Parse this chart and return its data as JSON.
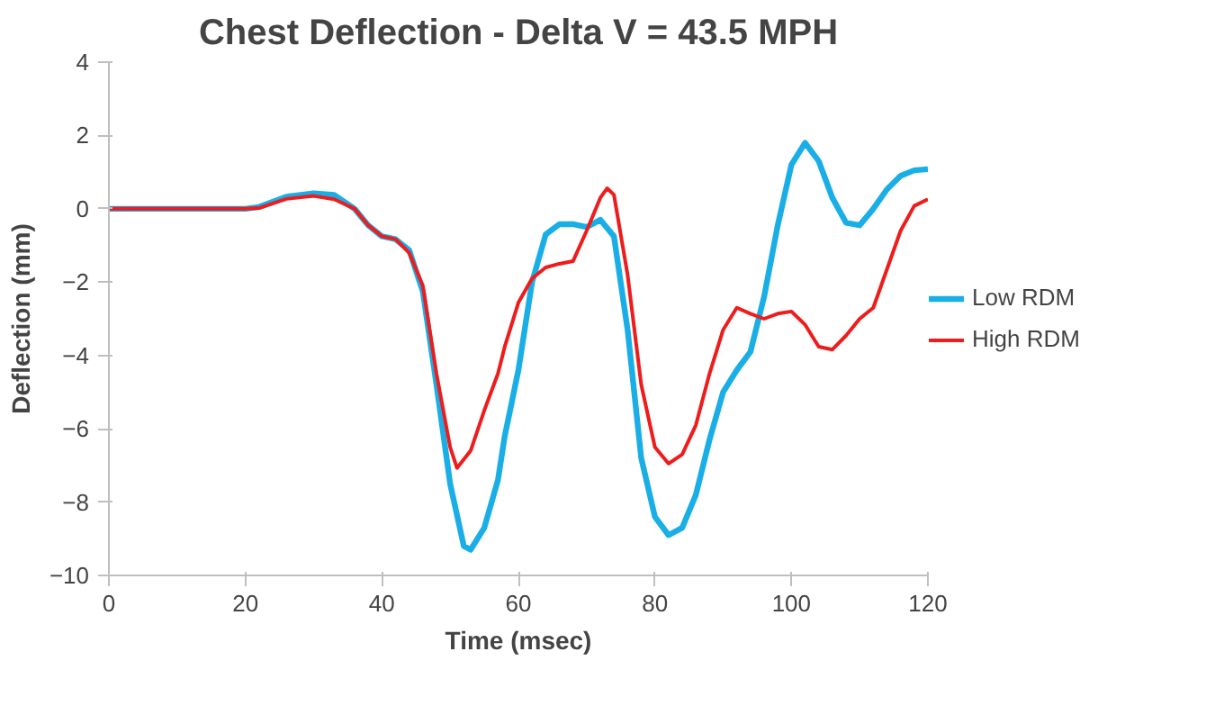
{
  "chart_data": {
    "type": "line",
    "title": "Chest Deflection - Delta V = 43.5 MPH",
    "xlabel": "Time (msec)",
    "ylabel": "Deflection (mm)",
    "xlim": [
      0,
      120
    ],
    "xticks": [
      0,
      20,
      40,
      60,
      80,
      100,
      120
    ],
    "ylim": [
      -10,
      4
    ],
    "yticks": [
      -10,
      -8,
      -6,
      -4,
      -2,
      0,
      2,
      4
    ],
    "grid": false,
    "legend": "right",
    "marker": "none",
    "line_style": "solid",
    "series": [
      {
        "name": "Low RDM",
        "color": "#1aaee6",
        "x": [
          0,
          10,
          20,
          22,
          26,
          30,
          33,
          36,
          38,
          40,
          42,
          44,
          46,
          48,
          50,
          52,
          53,
          55,
          57,
          58,
          60,
          62,
          64,
          66,
          68,
          70,
          72,
          74,
          76,
          78,
          80,
          82,
          84,
          86,
          88,
          90,
          92,
          94,
          96,
          98,
          100,
          102,
          104,
          106,
          108,
          110,
          112,
          114,
          116,
          118,
          120
        ],
        "values": [
          0,
          0,
          0,
          0.05,
          0.33,
          0.42,
          0.38,
          0,
          -0.45,
          -0.75,
          -0.83,
          -1.13,
          -2.26,
          -4.8,
          -7.5,
          -9.2,
          -9.3,
          -8.7,
          -7.4,
          -6.2,
          -4.4,
          -2.0,
          -0.7,
          -0.42,
          -0.42,
          -0.5,
          -0.3,
          -0.75,
          -3.3,
          -6.8,
          -8.4,
          -8.9,
          -8.7,
          -7.8,
          -6.3,
          -5.0,
          -4.4,
          -3.9,
          -2.4,
          -0.45,
          1.2,
          1.8,
          1.3,
          0.3,
          -0.38,
          -0.45,
          0,
          0.53,
          0.9,
          1.05,
          1.08
        ]
      },
      {
        "name": "High RDM",
        "color": "#ee1c1c",
        "x": [
          0,
          10,
          20,
          22,
          26,
          30,
          33,
          36,
          38,
          40,
          42,
          44,
          46,
          48,
          50,
          51,
          53,
          55,
          57,
          58,
          60,
          62,
          64,
          66,
          68,
          70,
          72,
          73,
          74,
          76,
          78,
          80,
          82,
          84,
          86,
          88,
          90,
          92,
          94,
          96,
          98,
          100,
          102,
          104,
          106,
          108,
          110,
          112,
          114,
          116,
          118,
          120
        ],
        "values": [
          0,
          0,
          0,
          0.02,
          0.27,
          0.35,
          0.26,
          0,
          -0.45,
          -0.75,
          -0.83,
          -1.2,
          -2.1,
          -4.5,
          -6.5,
          -7.07,
          -6.6,
          -5.5,
          -4.5,
          -3.76,
          -2.56,
          -1.9,
          -1.6,
          -1.5,
          -1.43,
          -0.6,
          0.3,
          0.56,
          0.38,
          -1.8,
          -4.8,
          -6.5,
          -6.95,
          -6.7,
          -5.9,
          -4.5,
          -3.3,
          -2.7,
          -2.86,
          -3.0,
          -2.86,
          -2.8,
          -3.16,
          -3.76,
          -3.84,
          -3.46,
          -3.0,
          -2.7,
          -1.65,
          -0.6,
          0.08,
          0.26
        ]
      }
    ]
  }
}
